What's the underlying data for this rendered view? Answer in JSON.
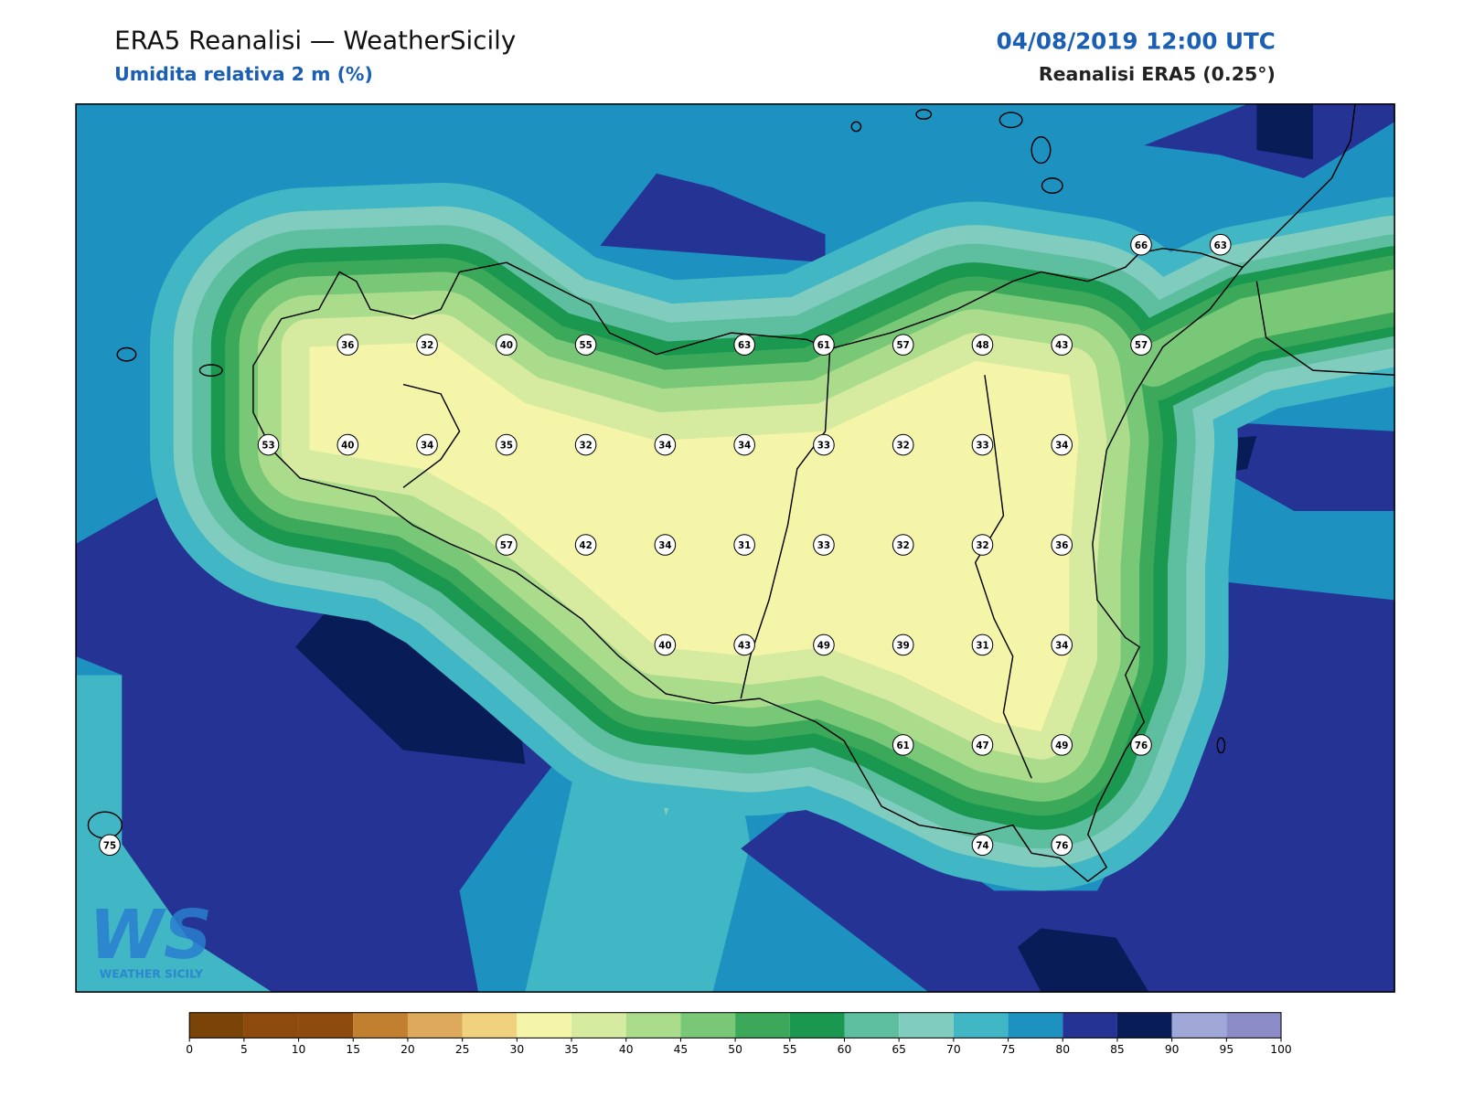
{
  "header": {
    "title": "ERA5 Reanalisi — WeatherSicily",
    "subtitle": "Umidita relativa 2 m (%)",
    "datetime": "04/08/2019 12:00 UTC",
    "source": "Reanalisi ERA5 (0.25°)"
  },
  "stations": [
    66,
    63,
    36,
    32,
    40,
    55,
    63,
    61,
    57,
    48,
    43,
    57,
    53,
    40,
    34,
    35,
    32,
    34,
    34,
    33,
    32,
    33,
    34,
    57,
    42,
    34,
    31,
    33,
    32,
    32,
    36,
    40,
    43,
    49,
    39,
    31,
    34,
    61,
    47,
    49,
    76,
    75,
    74,
    76
  ],
  "colorbar": {
    "ticks": [
      0,
      5,
      10,
      15,
      20,
      25,
      30,
      35,
      40,
      45,
      50,
      55,
      60,
      65,
      70,
      75,
      80,
      85,
      90,
      95,
      100
    ],
    "colors": [
      "#7a4408",
      "#8c4a0c",
      "#8c4a0c",
      "#c08030",
      "#dcaa5a",
      "#f0d27d",
      "#f5f5aa",
      "#d6eba0",
      "#abdc8c",
      "#78c878",
      "#3ca85a",
      "#1a9850",
      "#5ebfa0",
      "#80cdc0",
      "#41b6c4",
      "#1d91c0",
      "#253494",
      "#081d58",
      "#a0a8d8",
      "#8c8cc8"
    ]
  },
  "logo": {
    "mark": "WS",
    "name": "WEATHER SICILY"
  }
}
